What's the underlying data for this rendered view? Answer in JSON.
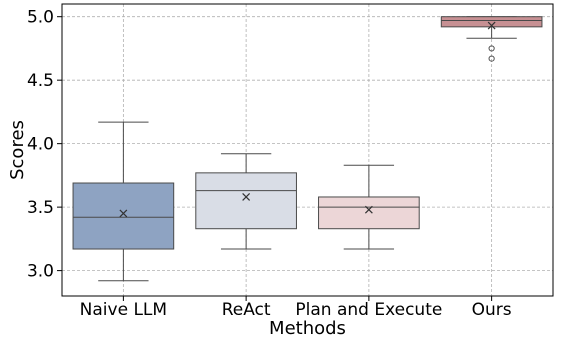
{
  "chart_data": {
    "type": "box",
    "xlabel": "Methods",
    "ylabel": "Scores",
    "ylim": [
      2.8,
      5.1
    ],
    "yticks": [
      "3.0",
      "3.5",
      "4.0",
      "4.5",
      "5.0"
    ],
    "grid": true,
    "categories": [
      "Naive LLM",
      "ReAct",
      "Plan and Execute",
      "Ours"
    ],
    "boxes": [
      {
        "whisker_low": 2.92,
        "q1": 3.17,
        "median": 3.42,
        "q3": 3.69,
        "whisker_high": 4.17,
        "mean": 3.45,
        "outliers": [],
        "color": "#8ea3c2"
      },
      {
        "whisker_low": 3.17,
        "q1": 3.33,
        "median": 3.63,
        "q3": 3.77,
        "whisker_high": 3.92,
        "mean": 3.58,
        "outliers": [],
        "color": "#d9dde6"
      },
      {
        "whisker_low": 3.17,
        "q1": 3.33,
        "median": 3.5,
        "q3": 3.58,
        "whisker_high": 3.83,
        "mean": 3.48,
        "outliers": [],
        "color": "#ecd6d7"
      },
      {
        "whisker_low": 4.83,
        "q1": 4.92,
        "median": 4.97,
        "q3": 5.0,
        "whisker_high": 5.0,
        "mean": 4.93,
        "outliers": [
          4.75,
          4.67
        ],
        "color": "#c79093"
      }
    ]
  }
}
